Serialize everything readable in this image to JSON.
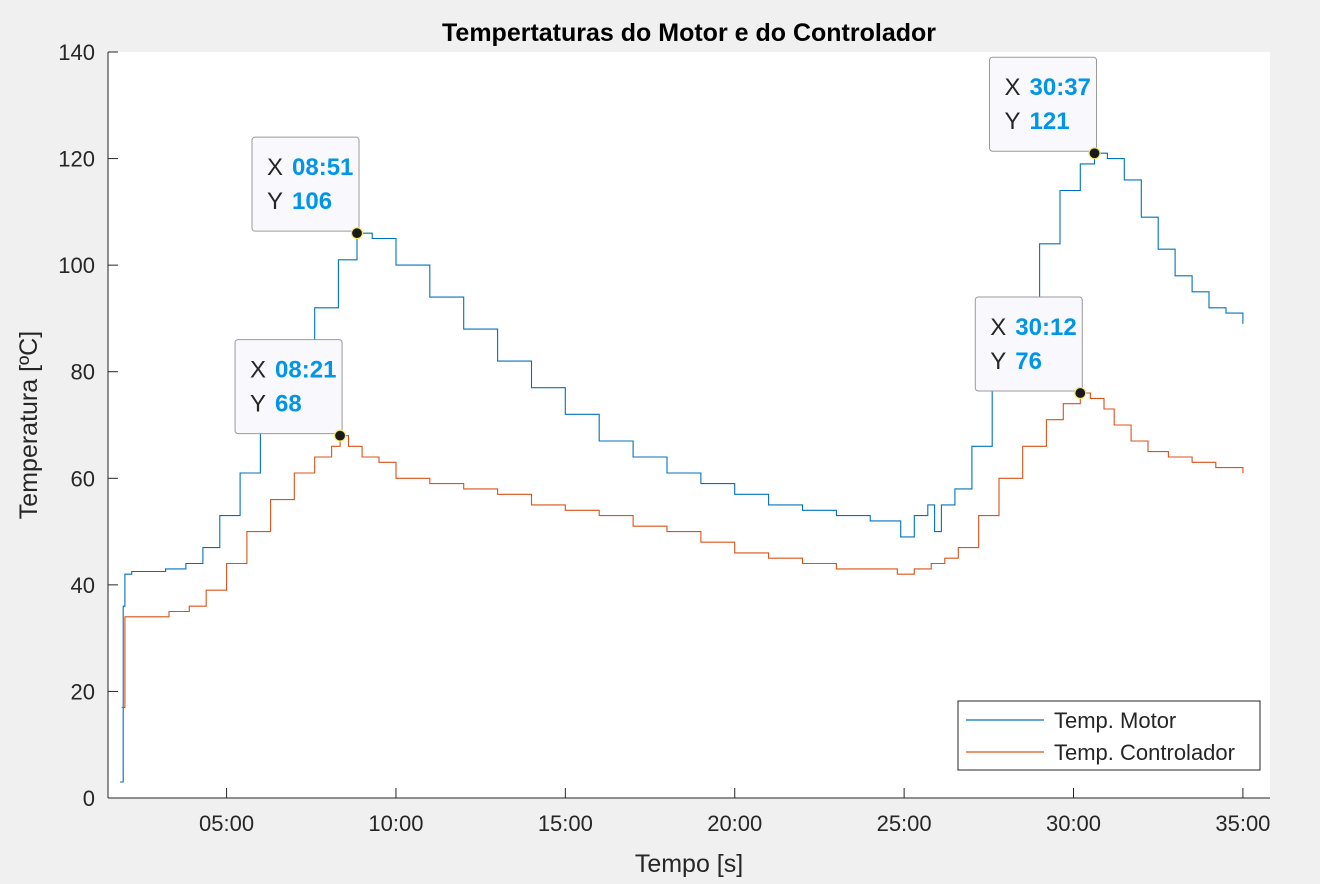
{
  "chart_data": {
    "type": "line",
    "title": "Tempertaturas do Motor e do Controlador",
    "xlabel": "Tempo [s]",
    "ylabel": "Temperatura [ºC]",
    "xlim": [
      1.5,
      35.8
    ],
    "ylim": [
      0,
      140
    ],
    "x_unit": "minutes",
    "xticks": [
      {
        "value": 5,
        "label": "05:00"
      },
      {
        "value": 10,
        "label": "10:00"
      },
      {
        "value": 15,
        "label": "15:00"
      },
      {
        "value": 20,
        "label": "20:00"
      },
      {
        "value": 25,
        "label": "25:00"
      },
      {
        "value": 30,
        "label": "30:00"
      },
      {
        "value": 35,
        "label": "35:00"
      }
    ],
    "yticks": [
      0,
      20,
      40,
      60,
      80,
      100,
      120,
      140
    ],
    "grid": false,
    "legend_position": "bottom-right",
    "series": [
      {
        "name": "Temp. Motor",
        "color": "#0072BD",
        "x": [
          1.85,
          1.95,
          2.0,
          2.2,
          2.6,
          3.2,
          3.8,
          4.3,
          4.8,
          5.4,
          6.0,
          6.8,
          7.6,
          8.3,
          8.85,
          9.3,
          10.0,
          11.0,
          12.0,
          13.0,
          14.0,
          15.0,
          16.0,
          17.0,
          18.0,
          19.0,
          20.0,
          21.0,
          22.0,
          23.0,
          24.0,
          24.6,
          24.9,
          25.3,
          25.7,
          25.9,
          26.1,
          26.5,
          27.0,
          27.6,
          28.3,
          29.0,
          29.6,
          30.2,
          30.62,
          31.0,
          31.5,
          32.0,
          32.5,
          33.0,
          33.5,
          34.0,
          34.5,
          35.0
        ],
        "y": [
          3,
          36,
          42,
          42.5,
          42.5,
          43,
          44,
          47,
          53,
          61,
          69,
          80,
          92,
          101,
          106,
          105,
          100,
          94,
          88,
          82,
          77,
          72,
          67,
          64,
          61,
          59,
          57,
          55,
          54,
          53,
          52,
          52,
          49,
          53,
          55,
          50,
          55,
          58,
          66,
          78,
          92,
          104,
          114,
          119,
          121,
          120,
          116,
          109,
          103,
          98,
          95,
          92,
          91,
          89
        ]
      },
      {
        "name": "Temp. Controlador",
        "color": "#D95319",
        "x": [
          1.9,
          2.0,
          2.2,
          2.7,
          3.3,
          3.9,
          4.4,
          5.0,
          5.6,
          6.3,
          7.0,
          7.6,
          8.1,
          8.35,
          8.6,
          9.0,
          9.5,
          10.0,
          11.0,
          12.0,
          13.0,
          14.0,
          15.0,
          16.0,
          17.0,
          18.0,
          19.0,
          20.0,
          21.0,
          22.0,
          23.0,
          24.0,
          24.8,
          25.3,
          25.8,
          26.2,
          26.6,
          27.2,
          27.8,
          28.5,
          29.2,
          29.7,
          30.2,
          30.5,
          30.9,
          31.2,
          31.7,
          32.2,
          32.8,
          33.5,
          34.2,
          35.0
        ],
        "y": [
          17,
          34,
          34,
          34,
          35,
          36,
          39,
          44,
          50,
          56,
          61,
          64,
          66,
          68,
          66,
          64,
          63,
          60,
          59,
          58,
          57,
          55,
          54,
          53,
          51,
          50,
          48,
          46,
          45,
          44,
          43,
          43,
          42,
          43,
          44,
          45,
          47,
          53,
          60,
          66,
          71,
          74,
          76,
          75,
          73,
          70,
          67,
          65,
          64,
          63,
          62,
          61
        ]
      }
    ],
    "annotations": [
      {
        "series": 0,
        "x": 8.85,
        "y": 106,
        "x_label": "08:51",
        "y_label": "106"
      },
      {
        "series": 1,
        "x": 8.35,
        "y": 68,
        "x_label": "08:21",
        "y_label": "68"
      },
      {
        "series": 0,
        "x": 30.62,
        "y": 121,
        "x_label": "30:37",
        "y_label": "121"
      },
      {
        "series": 1,
        "x": 30.2,
        "y": 76,
        "x_label": "30:12",
        "y_label": "76"
      }
    ],
    "datatip_key_x": "X",
    "datatip_key_y": "Y",
    "datatip_value_color": "#0095E8"
  }
}
